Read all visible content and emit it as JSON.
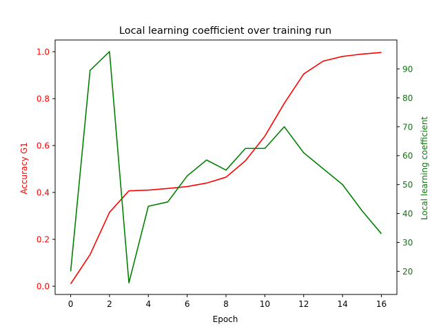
{
  "chart_data": {
    "type": "line",
    "title": "Local learning coefficient over training run",
    "xlabel": "Epoch",
    "ylabel_left": "Accuracy G1",
    "ylabel_right": "Local learning coefficient",
    "xlim": [
      -0.8,
      16.8
    ],
    "ylim_left": [
      -0.035,
      1.05
    ],
    "ylim_right": [
      12,
      100
    ],
    "x_ticks": [
      0,
      2,
      4,
      6,
      8,
      10,
      12,
      14,
      16
    ],
    "y_left_ticks": [
      "0.0",
      "0.2",
      "0.4",
      "0.6",
      "0.8",
      "1.0"
    ],
    "y_right_ticks": [
      "20",
      "30",
      "40",
      "50",
      "60",
      "70",
      "80",
      "90"
    ],
    "grid": false,
    "x": [
      0,
      1,
      2,
      3,
      4,
      5,
      6,
      7,
      8,
      9,
      10,
      11,
      12,
      13,
      14,
      15,
      16
    ],
    "series": [
      {
        "name": "Accuracy G1",
        "axis": "left",
        "color": "#ff0000",
        "values": [
          0.01,
          0.135,
          0.315,
          0.407,
          0.41,
          0.417,
          0.425,
          0.44,
          0.465,
          0.535,
          0.64,
          0.78,
          0.905,
          0.96,
          0.98,
          0.99,
          0.997
        ]
      },
      {
        "name": "Local learning coefficient",
        "axis": "right",
        "color": "#008000",
        "values": [
          20,
          89.5,
          96,
          16,
          42.5,
          44,
          53,
          58.5,
          55,
          62.5,
          62.5,
          70,
          61,
          55.5,
          50,
          41,
          33
        ]
      }
    ]
  }
}
